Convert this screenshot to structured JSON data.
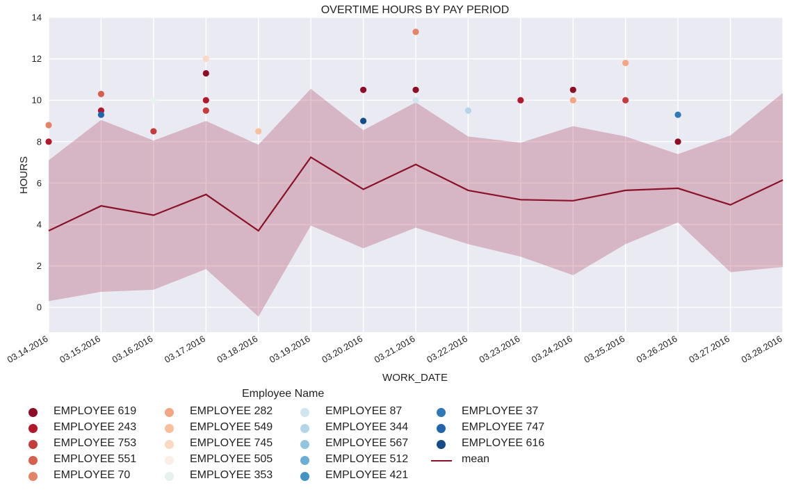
{
  "chart_data": {
    "type": "scatter",
    "title": "OVERTIME HOURS BY PAY PERIOD",
    "xlabel": "WORK_DATE",
    "ylabel": "HOURS",
    "ylim": [
      -1.2,
      14
    ],
    "yticks": [
      0,
      2,
      4,
      6,
      8,
      10,
      12,
      14
    ],
    "x": [
      "03.14.2016",
      "03.15.2016",
      "03.16.2016",
      "03.17.2016",
      "03.18.2016",
      "03.19.2016",
      "03.20.2016",
      "03.21.2016",
      "03.22.2016",
      "03.23.2016",
      "03.24.2016",
      "03.25.2016",
      "03.26.2016",
      "03.27.2016",
      "03.28.2016"
    ],
    "mean": [
      3.7,
      4.9,
      4.45,
      5.45,
      3.7,
      7.25,
      5.7,
      6.9,
      5.65,
      5.2,
      5.15,
      5.65,
      5.75,
      4.95,
      6.15
    ],
    "band_upper": [
      7.1,
      9.05,
      8.05,
      9.0,
      7.85,
      10.55,
      8.55,
      9.9,
      8.25,
      7.95,
      8.75,
      8.25,
      7.4,
      8.3,
      10.35
    ],
    "band_lower": [
      0.3,
      0.75,
      0.85,
      1.85,
      -0.45,
      3.95,
      2.85,
      3.85,
      3.05,
      2.45,
      1.55,
      3.05,
      4.1,
      1.7,
      1.95
    ],
    "grid": true,
    "legend": {
      "title": "Employee Name",
      "placement": "bottom",
      "mean_label": "mean",
      "mean_color": "#8a1128"
    },
    "series": [
      {
        "name": "EMPLOYEE 619",
        "color": "#8c0d25",
        "points": [
          [
            6,
            10.5
          ],
          [
            3,
            11.3
          ],
          [
            10,
            10.5
          ],
          [
            12,
            8.0
          ],
          [
            7,
            10.5
          ]
        ]
      },
      {
        "name": "EMPLOYEE 243",
        "color": "#b2182b",
        "points": [
          [
            0,
            8.0
          ],
          [
            1,
            9.5
          ],
          [
            3,
            10.0
          ],
          [
            9,
            10.0
          ]
        ]
      },
      {
        "name": "EMPLOYEE 753",
        "color": "#c43c3c",
        "points": [
          [
            2,
            8.5
          ],
          [
            3,
            9.5
          ],
          [
            11,
            10.0
          ]
        ]
      },
      {
        "name": "EMPLOYEE 551",
        "color": "#d6604d",
        "points": [
          [
            1,
            10.3
          ]
        ]
      },
      {
        "name": "EMPLOYEE 70",
        "color": "#e58368",
        "points": [
          [
            0,
            8.8
          ],
          [
            7,
            13.3
          ]
        ]
      },
      {
        "name": "EMPLOYEE 282",
        "color": "#f4a582",
        "points": [
          [
            10,
            10.0
          ],
          [
            11,
            11.8
          ]
        ]
      },
      {
        "name": "EMPLOYEE 549",
        "color": "#f7bf9e",
        "points": [
          [
            4,
            8.5
          ]
        ]
      },
      {
        "name": "EMPLOYEE 745",
        "color": "#fbd8c4",
        "points": [
          [
            3,
            12.0
          ]
        ]
      },
      {
        "name": "EMPLOYEE 505",
        "color": "#fbeee6",
        "points": []
      },
      {
        "name": "EMPLOYEE 353",
        "color": "#e8f1ee",
        "points": [
          [
            2,
            10.0
          ]
        ]
      },
      {
        "name": "EMPLOYEE 87",
        "color": "#d1e5f0",
        "points": [
          [
            7,
            10.0
          ]
        ]
      },
      {
        "name": "EMPLOYEE 344",
        "color": "#b4d6e9",
        "points": [
          [
            8,
            9.5
          ]
        ]
      },
      {
        "name": "EMPLOYEE 567",
        "color": "#92c5de",
        "points": []
      },
      {
        "name": "EMPLOYEE 512",
        "color": "#6aadd5",
        "points": []
      },
      {
        "name": "EMPLOYEE 421",
        "color": "#4393c3",
        "points": []
      },
      {
        "name": "EMPLOYEE 37",
        "color": "#3079b8",
        "points": [
          [
            12,
            9.3
          ]
        ]
      },
      {
        "name": "EMPLOYEE 747",
        "color": "#2166ac",
        "points": [
          [
            1,
            9.3
          ]
        ]
      },
      {
        "name": "EMPLOYEE 616",
        "color": "#164b8a",
        "points": [
          [
            6,
            9.0
          ]
        ]
      }
    ]
  }
}
